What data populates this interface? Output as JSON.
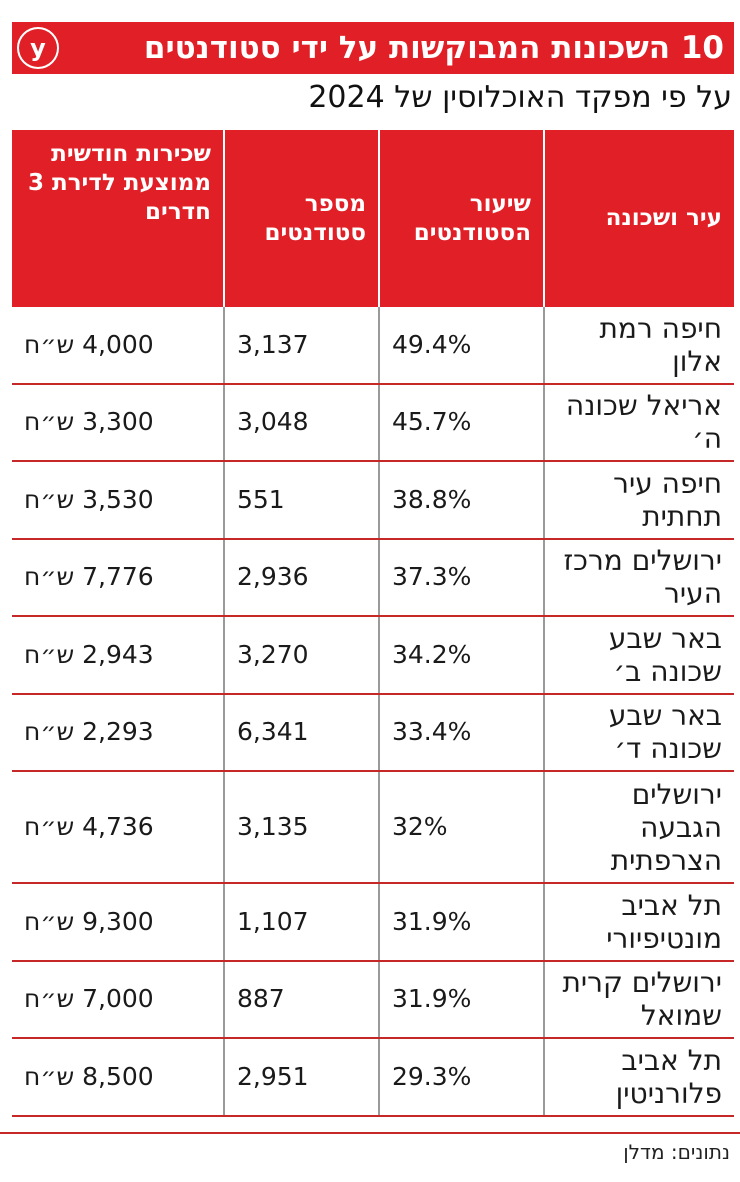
{
  "header": {
    "title": "10 השכונות המבוקשות על ידי סטודנטים",
    "logo_letter": "y",
    "subtitle": "על פי מפקד האוכלוסין של 2024"
  },
  "table": {
    "columns": [
      "עיר ושכונה",
      "שיעור הסטודנטים",
      "מספר סטודנטים",
      "שכירות חודשית ממוצעת לדירת 3 חדרים"
    ],
    "rows": [
      {
        "place": "חיפה רמת אלון",
        "ratio": "49.4%",
        "students": "3,137",
        "rent": "4,000 ש״ח"
      },
      {
        "place": "אריאל שכונה ה׳",
        "ratio": "45.7%",
        "students": "3,048",
        "rent": "3,300 ש״ח"
      },
      {
        "place": "חיפה עיר תחתית",
        "ratio": "38.8%",
        "students": "551",
        "rent": "3,530 ש״ח"
      },
      {
        "place": "ירושלים מרכז העיר",
        "ratio": "37.3%",
        "students": "2,936",
        "rent": "7,776 ש״ח"
      },
      {
        "place": "באר שבע שכונה ב׳",
        "ratio": "34.2%",
        "students": "3,270",
        "rent": "2,943 ש״ח"
      },
      {
        "place": "באר שבע שכונה ד׳",
        "ratio": "33.4%",
        "students": "6,341",
        "rent": "2,293 ש״ח"
      },
      {
        "place": "ירושלים הגבעה הצרפתית",
        "ratio": "32%",
        "students": "3,135",
        "rent": "4,736 ש״ח"
      },
      {
        "place": "תל אביב מונטיפיורי",
        "ratio": "31.9%",
        "students": "1,107",
        "rent": "9,300 ש״ח"
      },
      {
        "place": "ירושלים קרית שמואל",
        "ratio": "31.9%",
        "students": "887",
        "rent": "7,000 ש״ח"
      },
      {
        "place": "תל אביב פלורניטין",
        "ratio": "29.3%",
        "students": "2,951",
        "rent": "8,500 ש״ח"
      }
    ]
  },
  "footer": {
    "credit": "נתונים: מדלן"
  },
  "colors": {
    "accent": "#e01f26",
    "row_rule": "#c62828"
  }
}
